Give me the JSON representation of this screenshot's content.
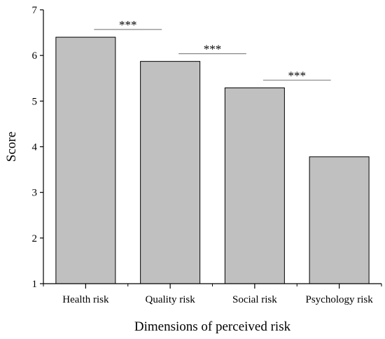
{
  "chart_data": {
    "type": "bar",
    "title": "",
    "xlabel": "Dimensions of perceived risk",
    "ylabel": "Score",
    "ylim": [
      1,
      7
    ],
    "yticks": [
      1,
      2,
      3,
      4,
      5,
      6,
      7
    ],
    "categories": [
      "Health risk",
      "Quality risk",
      "Social risk",
      "Psychology risk"
    ],
    "values": [
      6.4,
      5.87,
      5.29,
      3.78
    ],
    "bar_color": "#c0c0c0",
    "bar_edge_color": "#000000",
    "grid": false,
    "annotations": [
      {
        "text": "***",
        "from_index": 0,
        "to_index": 1,
        "line_color": "#888888"
      },
      {
        "text": "***",
        "from_index": 1,
        "to_index": 2,
        "line_color": "#888888"
      },
      {
        "text": "***",
        "from_index": 2,
        "to_index": 3,
        "line_color": "#888888"
      }
    ]
  }
}
